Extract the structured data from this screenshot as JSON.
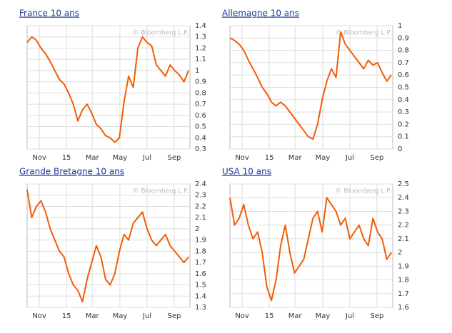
{
  "chart_data": [
    {
      "type": "line",
      "title": "France 10 ans",
      "annotation": "© Bloomberg L.P.",
      "xlim": [
        0,
        6
      ],
      "xticks": [
        {
          "value": 0.45,
          "label": "Nov"
        },
        {
          "value": 1.45,
          "label": "15"
        },
        {
          "value": 2.4,
          "label": "Mar"
        },
        {
          "value": 3.42,
          "label": "May"
        },
        {
          "value": 4.42,
          "label": "Jul"
        },
        {
          "value": 5.42,
          "label": "Sep"
        }
      ],
      "ylim": [
        0.3,
        1.4
      ],
      "yticks": [
        1.4,
        1.3,
        1.2,
        1.1,
        1,
        0.9,
        0.8,
        0.7,
        0.6,
        0.5,
        0.4,
        0.3
      ],
      "grid": true,
      "series": [
        {
          "name": "France 10 ans",
          "color": "#f25c05",
          "x": [
            0,
            0.17,
            0.34,
            0.51,
            0.68,
            0.85,
            1.02,
            1.19,
            1.36,
            1.53,
            1.7,
            1.87,
            2.04,
            2.21,
            2.38,
            2.55,
            2.72,
            2.89,
            3.06,
            3.23,
            3.4,
            3.57,
            3.74,
            3.91,
            4.08,
            4.25,
            4.42,
            4.59,
            4.76,
            4.93,
            5.1,
            5.27,
            5.44,
            5.61,
            5.78,
            5.95
          ],
          "values": [
            1.25,
            1.3,
            1.27,
            1.2,
            1.15,
            1.08,
            1.0,
            0.92,
            0.88,
            0.8,
            0.7,
            0.55,
            0.65,
            0.7,
            0.62,
            0.52,
            0.48,
            0.42,
            0.4,
            0.36,
            0.4,
            0.72,
            0.95,
            0.85,
            1.2,
            1.3,
            1.25,
            1.22,
            1.05,
            1.0,
            0.95,
            1.05,
            1.0,
            0.96,
            0.9,
            1.0
          ]
        }
      ]
    },
    {
      "type": "line",
      "title": "Allemagne 10 ans",
      "annotation": "© Bloomberg L.P.",
      "xlim": [
        0,
        6
      ],
      "xticks": [
        {
          "value": 0.45,
          "label": "Nov"
        },
        {
          "value": 1.45,
          "label": "15"
        },
        {
          "value": 2.4,
          "label": "Mar"
        },
        {
          "value": 3.42,
          "label": "May"
        },
        {
          "value": 4.42,
          "label": "Jul"
        },
        {
          "value": 5.42,
          "label": "Sep"
        }
      ],
      "ylim": [
        0,
        1
      ],
      "yticks": [
        1,
        0.9,
        0.8,
        0.7,
        0.6,
        0.5,
        0.4,
        0.3,
        0.2,
        0.1,
        0
      ],
      "grid": true,
      "series": [
        {
          "name": "Allemagne 10 ans",
          "color": "#f25c05",
          "x": [
            0,
            0.17,
            0.34,
            0.51,
            0.68,
            0.85,
            1.02,
            1.19,
            1.36,
            1.53,
            1.7,
            1.87,
            2.04,
            2.21,
            2.38,
            2.55,
            2.72,
            2.89,
            3.06,
            3.23,
            3.4,
            3.57,
            3.74,
            3.91,
            4.08,
            4.25,
            4.42,
            4.59,
            4.76,
            4.93,
            5.1,
            5.27,
            5.44,
            5.61,
            5.78,
            5.95
          ],
          "values": [
            0.9,
            0.88,
            0.85,
            0.8,
            0.72,
            0.65,
            0.58,
            0.5,
            0.45,
            0.38,
            0.35,
            0.38,
            0.35,
            0.3,
            0.25,
            0.2,
            0.15,
            0.1,
            0.08,
            0.2,
            0.4,
            0.55,
            0.65,
            0.58,
            0.95,
            0.85,
            0.8,
            0.75,
            0.7,
            0.65,
            0.72,
            0.68,
            0.7,
            0.62,
            0.55,
            0.6
          ]
        }
      ]
    },
    {
      "type": "line",
      "title": "Grande Bretagne 10 ans",
      "annotation": "© Bloomberg L.P.",
      "xlim": [
        0,
        6
      ],
      "xticks": [
        {
          "value": 0.45,
          "label": "Nov"
        },
        {
          "value": 1.45,
          "label": "15"
        },
        {
          "value": 2.4,
          "label": "Mar"
        },
        {
          "value": 3.42,
          "label": "May"
        },
        {
          "value": 4.42,
          "label": "Jul"
        },
        {
          "value": 5.42,
          "label": "Sep"
        }
      ],
      "ylim": [
        1.3,
        2.4
      ],
      "yticks": [
        2.4,
        2.3,
        2.2,
        2.1,
        2,
        1.9,
        1.8,
        1.7,
        1.6,
        1.5,
        1.4,
        1.3
      ],
      "grid": true,
      "series": [
        {
          "name": "Grande Bretagne 10 ans",
          "color": "#f25c05",
          "x": [
            0,
            0.17,
            0.34,
            0.51,
            0.68,
            0.85,
            1.02,
            1.19,
            1.36,
            1.53,
            1.7,
            1.87,
            2.04,
            2.21,
            2.38,
            2.55,
            2.72,
            2.89,
            3.06,
            3.23,
            3.4,
            3.57,
            3.74,
            3.91,
            4.08,
            4.25,
            4.42,
            4.59,
            4.76,
            4.93,
            5.1,
            5.27,
            5.44,
            5.61,
            5.78,
            5.95
          ],
          "values": [
            2.35,
            2.1,
            2.2,
            2.25,
            2.15,
            2.0,
            1.9,
            1.8,
            1.75,
            1.6,
            1.5,
            1.45,
            1.35,
            1.55,
            1.7,
            1.85,
            1.75,
            1.55,
            1.5,
            1.6,
            1.8,
            1.95,
            1.9,
            2.05,
            2.1,
            2.15,
            2.0,
            1.9,
            1.85,
            1.9,
            1.95,
            1.85,
            1.8,
            1.75,
            1.7,
            1.75
          ]
        }
      ]
    },
    {
      "type": "line",
      "title": "USA 10 ans",
      "annotation": "© Bloomberg L.P.",
      "xlim": [
        0,
        6
      ],
      "xticks": [
        {
          "value": 0.45,
          "label": "Nov"
        },
        {
          "value": 1.45,
          "label": "15"
        },
        {
          "value": 2.4,
          "label": "Mar"
        },
        {
          "value": 3.42,
          "label": "May"
        },
        {
          "value": 4.42,
          "label": "Jul"
        },
        {
          "value": 5.42,
          "label": "Sep"
        }
      ],
      "ylim": [
        1.6,
        2.5
      ],
      "yticks": [
        2.5,
        2.4,
        2.3,
        2.2,
        2.1,
        2,
        1.9,
        1.8,
        1.7,
        1.6
      ],
      "grid": true,
      "series": [
        {
          "name": "USA 10 ans",
          "color": "#f25c05",
          "x": [
            0,
            0.17,
            0.34,
            0.51,
            0.68,
            0.85,
            1.02,
            1.19,
            1.36,
            1.53,
            1.7,
            1.87,
            2.04,
            2.21,
            2.38,
            2.55,
            2.72,
            2.89,
            3.06,
            3.23,
            3.4,
            3.57,
            3.74,
            3.91,
            4.08,
            4.25,
            4.42,
            4.59,
            4.76,
            4.93,
            5.1,
            5.27,
            5.44,
            5.61,
            5.78,
            5.95
          ],
          "values": [
            2.4,
            2.2,
            2.25,
            2.35,
            2.2,
            2.1,
            2.15,
            2.0,
            1.75,
            1.65,
            1.8,
            2.05,
            2.2,
            2.0,
            1.85,
            1.9,
            1.95,
            2.1,
            2.25,
            2.3,
            2.15,
            2.4,
            2.35,
            2.3,
            2.2,
            2.25,
            2.1,
            2.15,
            2.2,
            2.1,
            2.05,
            2.25,
            2.15,
            2.1,
            1.95,
            2.0
          ]
        }
      ]
    }
  ]
}
